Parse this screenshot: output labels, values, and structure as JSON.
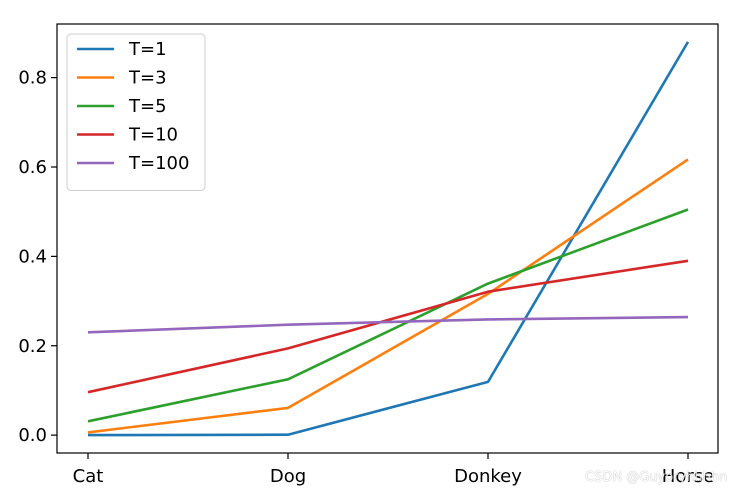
{
  "chart_data": {
    "type": "line",
    "title": "",
    "xlabel": "",
    "ylabel": "",
    "categories": [
      "Cat",
      "Dog",
      "Donkey",
      "Horse"
    ],
    "ylim": [
      -0.04,
      0.92
    ],
    "yticks": [
      0.0,
      0.2,
      0.4,
      0.6,
      0.8
    ],
    "ytick_labels": [
      "0.0",
      "0.2",
      "0.4",
      "0.6",
      "0.8"
    ],
    "grid": false,
    "legend_position": "top-left",
    "series": [
      {
        "name": "T=1",
        "color": "#1f77b4",
        "values": [
          0.0,
          0.001,
          0.119,
          0.88
        ]
      },
      {
        "name": "T=3",
        "color": "#ff7f0e",
        "values": [
          0.006,
          0.061,
          0.316,
          0.617
        ]
      },
      {
        "name": "T=5",
        "color": "#2ca02c",
        "values": [
          0.031,
          0.125,
          0.339,
          0.505
        ]
      },
      {
        "name": "T=10",
        "color": "#d62728",
        "values": [
          0.096,
          0.194,
          0.321,
          0.39
        ]
      },
      {
        "name": "T=100",
        "color": "#9467bd",
        "values": [
          0.23,
          0.247,
          0.259,
          0.264
        ]
      }
    ]
  },
  "watermark": "CSDN @Guyoryhhhhn"
}
